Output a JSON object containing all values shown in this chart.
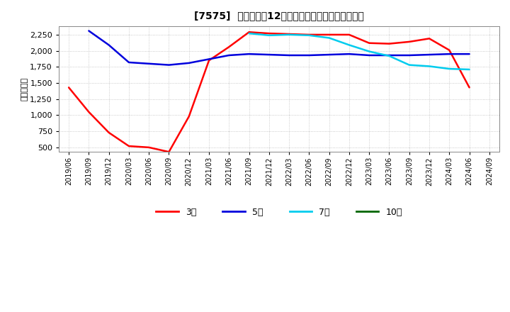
{
  "title": "[7575]  当期純利益12か月移動合計の標準偏差の推移",
  "ylabel": "（百万円）",
  "ylim": [
    430,
    2380
  ],
  "yticks": [
    500,
    750,
    1000,
    1250,
    1500,
    1750,
    2000,
    2250
  ],
  "background_color": "#ffffff",
  "plot_bg_color": "#ffffff",
  "grid_color": "#aaaaaa",
  "series": {
    "3年": {
      "color": "#ff0000",
      "dates": [
        "2019/06",
        "2019/09",
        "2019/12",
        "2020/03",
        "2020/06",
        "2020/09",
        "2020/12",
        "2021/03",
        "2021/06",
        "2021/09",
        "2021/12",
        "2022/03",
        "2022/06",
        "2022/09",
        "2022/12",
        "2023/03",
        "2023/06",
        "2023/09",
        "2023/12",
        "2024/03",
        "2024/06"
      ],
      "values": [
        1430,
        1050,
        730,
        520,
        500,
        430,
        980,
        1850,
        2060,
        2290,
        2270,
        2260,
        2250,
        2250,
        2250,
        2120,
        2110,
        2140,
        2190,
        2010,
        1430
      ]
    },
    "5年": {
      "color": "#0000dd",
      "dates": [
        "2019/09",
        "2019/12",
        "2020/03",
        "2020/06",
        "2020/09",
        "2020/12",
        "2021/03",
        "2021/06",
        "2021/09",
        "2021/12",
        "2022/03",
        "2022/06",
        "2022/09",
        "2022/12",
        "2023/03",
        "2023/06",
        "2023/09",
        "2023/12",
        "2024/03",
        "2024/06"
      ],
      "values": [
        2310,
        2090,
        1820,
        1800,
        1780,
        1810,
        1870,
        1930,
        1950,
        1940,
        1930,
        1930,
        1940,
        1950,
        1930,
        1930,
        1930,
        1940,
        1950,
        1950
      ]
    },
    "7年": {
      "color": "#00ccee",
      "dates": [
        "2021/09",
        "2021/12",
        "2022/03",
        "2022/06",
        "2022/09",
        "2022/12",
        "2023/03",
        "2023/06",
        "2023/09",
        "2023/12",
        "2024/03",
        "2024/06"
      ],
      "values": [
        2270,
        2240,
        2250,
        2240,
        2200,
        2090,
        1990,
        1920,
        1780,
        1760,
        1720,
        1710
      ]
    },
    "10年": {
      "color": "#006600",
      "dates": [],
      "values": []
    }
  },
  "legend_labels": [
    "3年",
    "5年",
    "7年",
    "10年"
  ],
  "legend_colors": [
    "#ff0000",
    "#0000dd",
    "#00ccee",
    "#006600"
  ],
  "xticks": [
    "2019/06",
    "2019/09",
    "2019/12",
    "2020/03",
    "2020/06",
    "2020/09",
    "2020/12",
    "2021/03",
    "2021/06",
    "2021/09",
    "2021/12",
    "2022/03",
    "2022/06",
    "2022/09",
    "2022/12",
    "2023/03",
    "2023/06",
    "2023/09",
    "2023/12",
    "2024/03",
    "2024/06",
    "2024/09"
  ]
}
